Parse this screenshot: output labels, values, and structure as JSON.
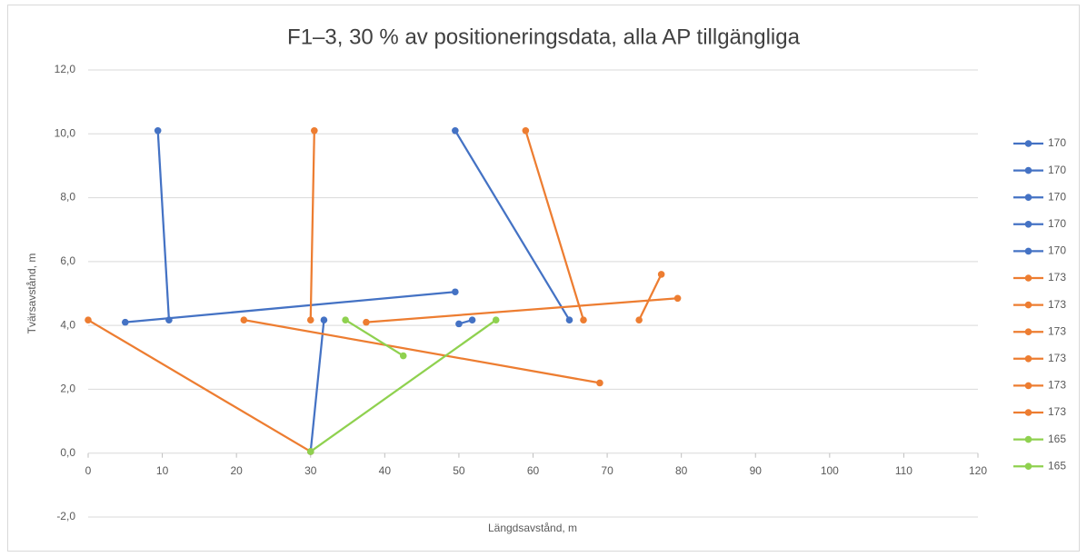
{
  "chart_data": {
    "type": "scatter",
    "title": "F1–3, 30 % av positioneringsdata, alla AP tillgängliga",
    "xlabel": "Längdsavstånd, m",
    "ylabel": "Tvärsavstånd, m",
    "xlim": [
      0,
      120
    ],
    "xticks": [
      0,
      10,
      20,
      30,
      40,
      50,
      60,
      70,
      80,
      90,
      100,
      110,
      120
    ],
    "ylim": [
      -2,
      12
    ],
    "yticks": [
      {
        "value": -2,
        "label": "-2,0"
      },
      {
        "value": 0,
        "label": "0,0"
      },
      {
        "value": 2,
        "label": "2,0"
      },
      {
        "value": 4,
        "label": "4,0"
      },
      {
        "value": 6,
        "label": "6,0"
      },
      {
        "value": 8,
        "label": "8,0"
      },
      {
        "value": 10,
        "label": "10,0"
      },
      {
        "value": 12,
        "label": "12,0"
      }
    ],
    "grid": true,
    "legend": "right",
    "series": [
      {
        "name": "170",
        "color": "#4472c4",
        "x": [
          9.4,
          10.9
        ],
        "values": [
          10.1,
          4.17
        ]
      },
      {
        "name": "170",
        "color": "#4472c4",
        "x": [
          5,
          49.5
        ],
        "values": [
          4.1,
          5.05
        ]
      },
      {
        "name": "170",
        "color": "#4472c4",
        "x": [
          31.8,
          30
        ],
        "values": [
          4.17,
          0.05
        ]
      },
      {
        "name": "170",
        "color": "#4472c4",
        "x": [
          49.5,
          64.9
        ],
        "values": [
          10.1,
          4.17
        ]
      },
      {
        "name": "170",
        "color": "#4472c4",
        "x": [
          50,
          51.8
        ],
        "values": [
          4.05,
          4.17
        ]
      },
      {
        "name": "173",
        "color": "#ed7d31",
        "x": [
          0,
          30
        ],
        "values": [
          4.17,
          0.05
        ]
      },
      {
        "name": "173",
        "color": "#ed7d31",
        "x": [
          30.5,
          30
        ],
        "values": [
          10.1,
          4.17
        ]
      },
      {
        "name": "173",
        "color": "#ed7d31",
        "x": [
          21,
          69
        ],
        "values": [
          4.17,
          2.2
        ]
      },
      {
        "name": "173",
        "color": "#ed7d31",
        "x": [
          37.5,
          79.5
        ],
        "values": [
          4.1,
          4.85
        ]
      },
      {
        "name": "173",
        "color": "#ed7d31",
        "x": [
          59,
          66.8
        ],
        "values": [
          10.1,
          4.17
        ]
      },
      {
        "name": "173",
        "color": "#ed7d31",
        "x": [
          74.3,
          77.3
        ],
        "values": [
          4.17,
          5.6
        ]
      },
      {
        "name": "165",
        "color": "#8fd14f",
        "x": [
          34.7,
          42.5
        ],
        "values": [
          4.17,
          3.05
        ]
      },
      {
        "name": "165",
        "color": "#8fd14f",
        "x": [
          30,
          55
        ],
        "values": [
          0.05,
          4.17
        ]
      }
    ]
  }
}
